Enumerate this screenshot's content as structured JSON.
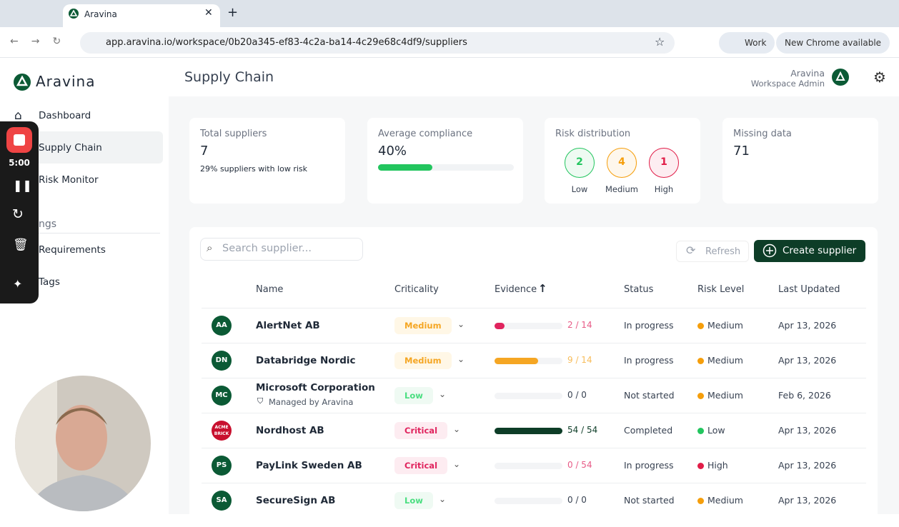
{
  "browser": {
    "tab_title": "Aravina",
    "url": "app.aravina.io/workspace/0b20a345-ef83-4c2a-ba14-4c29e68c4df9/suppliers",
    "profile": "Work",
    "update_notice": "New Chrome available"
  },
  "recorder": {
    "timer": "5:00"
  },
  "sidebar": {
    "brand": "Aravina",
    "nav": [
      "Dashboard",
      "Supply Chain",
      "Risk Monitor"
    ],
    "section": "ngs",
    "section_items": [
      "Requirements",
      "Tags"
    ]
  },
  "header": {
    "title": "Supply Chain",
    "user_name": "Aravina",
    "user_role": "Workspace Admin"
  },
  "stats": {
    "total": {
      "label": "Total suppliers",
      "value": 7,
      "note": "29% suppliers with low risk"
    },
    "compliance": {
      "label": "Average compliance",
      "value": 40,
      "value_label": "40%"
    },
    "risk": {
      "label": "Risk distribution",
      "levels": [
        {
          "name": "Low",
          "count": 2
        },
        {
          "name": "Medium",
          "count": 4
        },
        {
          "name": "High",
          "count": 1
        }
      ]
    },
    "missing": {
      "label": "Missing data",
      "value": 71
    }
  },
  "toolbar": {
    "search_placeholder": "Search supplier...",
    "refresh": "Refresh",
    "create": "Create supplier"
  },
  "table": {
    "columns": [
      "Name",
      "Criticality",
      "Evidence",
      "Status",
      "Risk Level",
      "Last Updated"
    ],
    "rows": [
      {
        "initials": "AA",
        "name": "AlertNet AB",
        "criticality": "Medium",
        "evidence_done": 2,
        "evidence_total": 14,
        "evidence_label": "2 / 14",
        "status": "In progress",
        "risk": "Medium",
        "updated": "Apr 13, 2026"
      },
      {
        "initials": "DN",
        "name": "Databridge Nordic",
        "criticality": "Medium",
        "evidence_done": 9,
        "evidence_total": 14,
        "evidence_label": "9 / 14",
        "status": "In progress",
        "risk": "Medium",
        "updated": "Apr 13, 2026"
      },
      {
        "initials": "MC",
        "name": "Microsoft Corporation",
        "sub": "Managed by Aravina",
        "criticality": "Low",
        "evidence_done": 0,
        "evidence_total": 0,
        "evidence_label": "0 / 0",
        "status": "Not started",
        "risk": "Medium",
        "updated": "Feb 6, 2026"
      },
      {
        "initials": "ACME BRICK",
        "name": "Nordhost AB",
        "criticality": "Critical",
        "evidence_done": 54,
        "evidence_total": 54,
        "evidence_label": "54 / 54",
        "status": "Completed",
        "risk": "Low",
        "updated": "Apr 13, 2026"
      },
      {
        "initials": "PS",
        "name": "PayLink Sweden AB",
        "criticality": "Critical",
        "evidence_done": 0,
        "evidence_total": 54,
        "evidence_label": "0 / 54",
        "status": "In progress",
        "risk": "High",
        "updated": "Apr 13, 2026"
      },
      {
        "initials": "SA",
        "name": "SecureSign AB",
        "criticality": "Low",
        "evidence_done": 0,
        "evidence_total": 0,
        "evidence_label": "0 / 0",
        "status": "Not started",
        "risk": "Medium",
        "updated": "Apr 13, 2026"
      }
    ]
  }
}
